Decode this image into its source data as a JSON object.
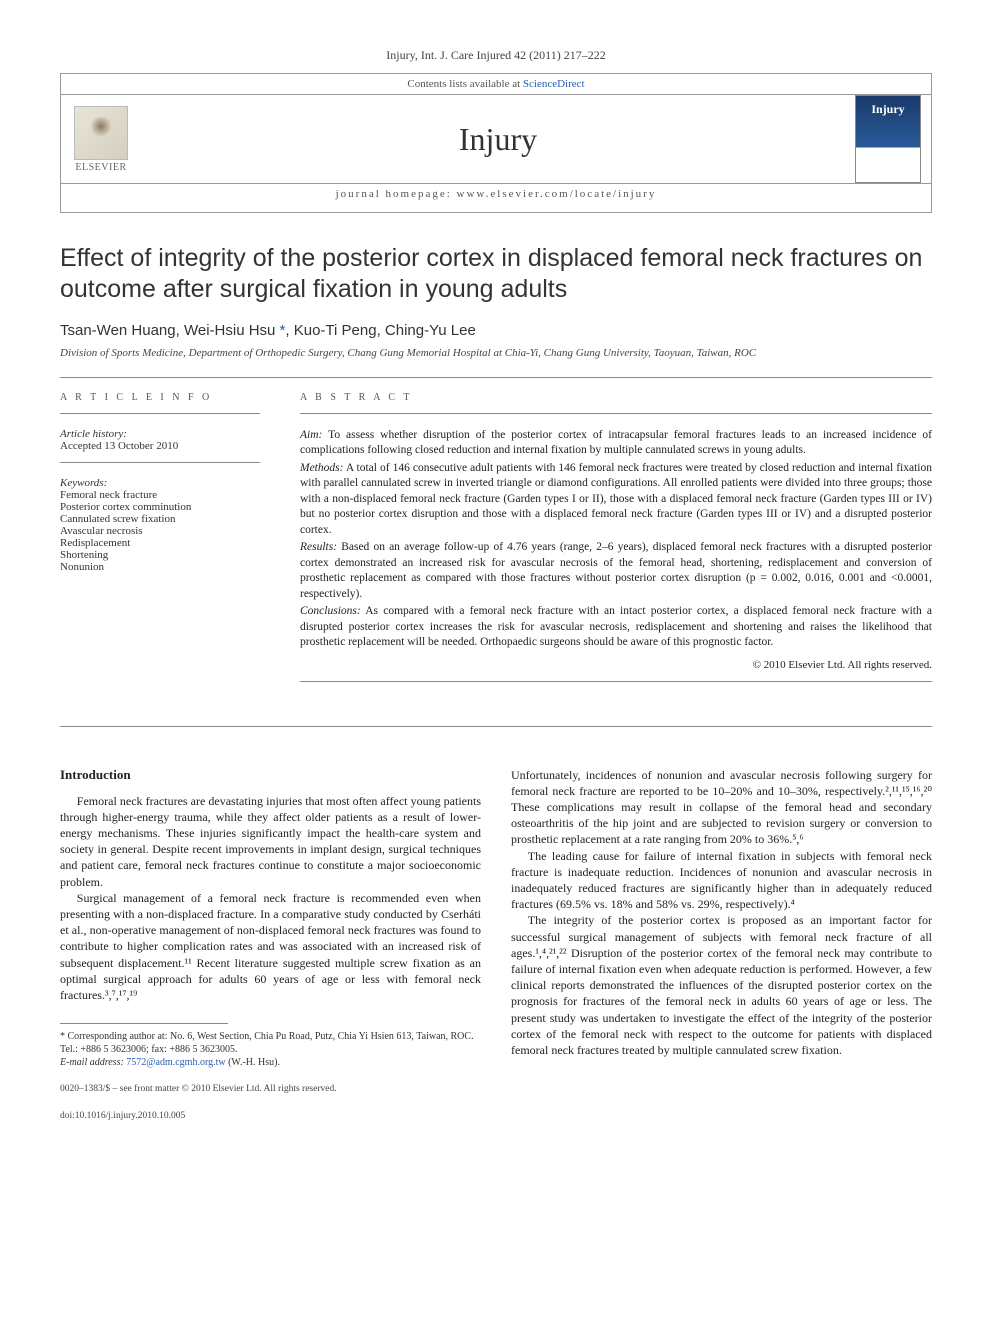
{
  "citation": "Injury, Int. J. Care Injured 42 (2011) 217–222",
  "header": {
    "contents_prefix": "Contents lists available at ",
    "contents_link": "ScienceDirect",
    "journal_name": "Injury",
    "publisher_name": "ELSEVIER",
    "homepage_prefix": "journal homepage: ",
    "homepage_url": "www.elsevier.com/locate/injury",
    "cover_label": "Injury"
  },
  "article": {
    "title": "Effect of integrity of the posterior cortex in displaced femoral neck fractures on outcome after surgical fixation in young adults",
    "authors_html": "Tsan-Wen Huang, Wei-Hsiu Hsu *, Kuo-Ti Peng, Ching-Yu Lee",
    "affiliation": "Division of Sports Medicine, Department of Orthopedic Surgery, Chang Gung Memorial Hospital at Chia-Yi, Chang Gung University, Taoyuan, Taiwan, ROC"
  },
  "info": {
    "heading": "A R T I C L E   I N F O",
    "history_label": "Article history:",
    "history_text": "Accepted 13 October 2010",
    "keywords_label": "Keywords:",
    "keywords": [
      "Femoral neck fracture",
      "Posterior cortex comminution",
      "Cannulated screw fixation",
      "Avascular necrosis",
      "Redisplacement",
      "Shortening",
      "Nonunion"
    ]
  },
  "abstract": {
    "heading": "A B S T R A C T",
    "aim_label": "Aim:",
    "aim": " To assess whether disruption of the posterior cortex of intracapsular femoral fractures leads to an increased incidence of complications following closed reduction and internal fixation by multiple cannulated screws in young adults.",
    "methods_label": "Methods:",
    "methods": " A total of 146 consecutive adult patients with 146 femoral neck fractures were treated by closed reduction and internal fixation with parallel cannulated screw in inverted triangle or diamond configurations. All enrolled patients were divided into three groups; those with a non-displaced femoral neck fracture (Garden types I or II), those with a displaced femoral neck fracture (Garden types III or IV) but no posterior cortex disruption and those with a displaced femoral neck fracture (Garden types III or IV) and a disrupted posterior cortex.",
    "results_label": "Results:",
    "results": " Based on an average follow-up of 4.76 years (range, 2–6 years), displaced femoral neck fractures with a disrupted posterior cortex demonstrated an increased risk for avascular necrosis of the femoral head, shortening, redisplacement and conversion of prosthetic replacement as compared with those fractures without posterior cortex disruption (p = 0.002, 0.016, 0.001 and <0.0001, respectively).",
    "conclusions_label": "Conclusions:",
    "conclusions": " As compared with a femoral neck fracture with an intact posterior cortex, a displaced femoral neck fracture with a disrupted posterior cortex increases the risk for avascular necrosis, redisplacement and shortening and raises the likelihood that prosthetic replacement will be needed. Orthopaedic surgeons should be aware of this prognostic factor.",
    "copyright": "© 2010 Elsevier Ltd. All rights reserved."
  },
  "body": {
    "intro_heading": "Introduction",
    "left_paras": [
      "Femoral neck fractures are devastating injuries that most often affect young patients through higher-energy trauma, while they affect older patients as a result of lower-energy mechanisms. These injuries significantly impact the health-care system and society in general. Despite recent improvements in implant design, surgical techniques and patient care, femoral neck fractures continue to constitute a major socioeconomic problem.",
      "Surgical management of a femoral neck fracture is recommended even when presenting with a non-displaced fracture. In a comparative study conducted by Cserháti et al., non-operative management of non-displaced femoral neck fractures was found to contribute to higher complication rates and was associated with an increased risk of subsequent displacement.¹¹ Recent literature suggested multiple screw fixation as an optimal surgical approach for adults 60 years of age or less with femoral neck fractures.³,⁷,¹⁷,¹⁹"
    ],
    "right_paras": [
      "Unfortunately, incidences of nonunion and avascular necrosis following surgery for femoral neck fracture are reported to be 10–20% and 10–30%, respectively.²,¹¹,¹⁵,¹⁶,²⁰ These complications may result in collapse of the femoral head and secondary osteoarthritis of the hip joint and are subjected to revision surgery or conversion to prosthetic replacement at a rate ranging from 20% to 36%.⁵,⁶",
      "The leading cause for failure of internal fixation in subjects with femoral neck fracture is inadequate reduction. Incidences of nonunion and avascular necrosis in inadequately reduced fractures are significantly higher than in adequately reduced fractures (69.5% vs. 18% and 58% vs. 29%, respectively).⁴",
      "The integrity of the posterior cortex is proposed as an important factor for successful surgical management of subjects with femoral neck fracture of all ages.¹,⁴,²¹,²² Disruption of the posterior cortex of the femoral neck may contribute to failure of internal fixation even when adequate reduction is performed. However, a few clinical reports demonstrated the influences of the disrupted posterior cortex on the prognosis for fractures of the femoral neck in adults 60 years of age or less. The present study was undertaken to investigate the effect of the integrity of the posterior cortex of the femoral neck with respect to the outcome for patients with displaced femoral neck fractures treated by multiple cannulated screw fixation."
    ]
  },
  "footnote": {
    "corr_label": "* Corresponding author at: ",
    "corr_text": "No. 6, West Section, Chia Pu Road, Putz, Chia Yi Hsien 613, Taiwan, ROC. Tel.: +886 5 3623006; fax: +886 5 3623005.",
    "email_label": "E-mail address: ",
    "email": "7572@adm.cgmh.org.tw",
    "email_suffix": " (W.-H. Hsu)."
  },
  "bottom": {
    "issn_line": "0020–1383/$ – see front matter © 2010 Elsevier Ltd. All rights reserved.",
    "doi_line": "doi:10.1016/j.injury.2010.10.005"
  },
  "colors": {
    "link": "#2a5db0",
    "rule": "#888888",
    "text": "#222222"
  }
}
